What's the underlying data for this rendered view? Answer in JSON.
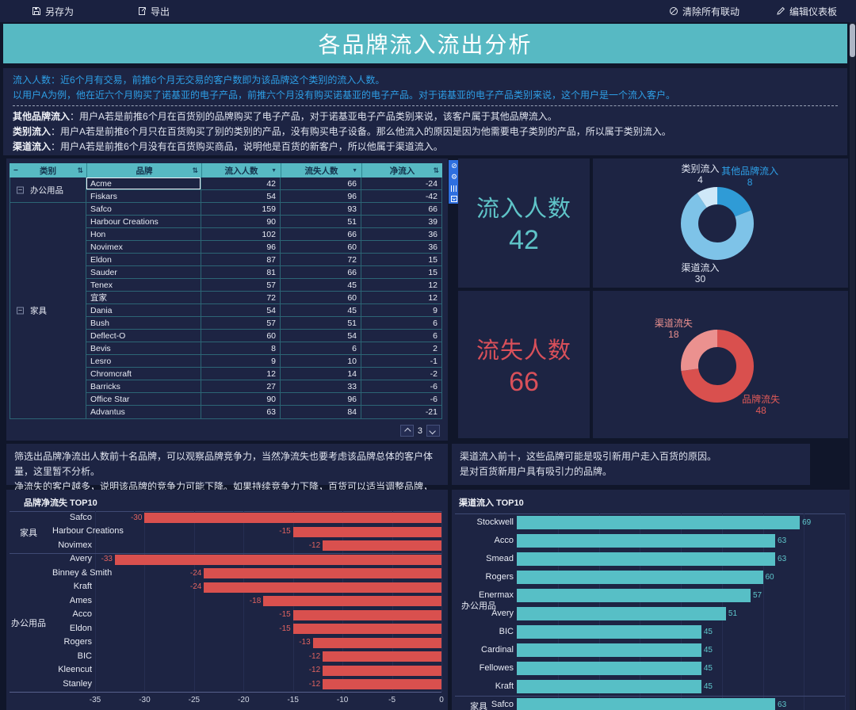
{
  "topbar": {
    "save_label": "另存为",
    "export_label": "导出",
    "clear_linkage_label": "清除所有联动",
    "edit_dashboard_label": "编辑仪表板"
  },
  "title": "各品牌流入流出分析",
  "description": {
    "blue_lines": [
      "流入人数：近6个月有交易，前推6个月无交易的客户数即为该品牌这个类别的流入人数。",
      "以用户A为例，他在近六个月购买了诺基亚的电子产品，前推六个月没有购买诺基亚的电子产品。对于诺基亚的电子产品类别来说，这个用户是一个流入客户。"
    ],
    "defs": [
      {
        "term": "其他品牌流入",
        "text": "：用户A若是前推6个月在百货别的品牌购买了电子产品，对于诺基亚电子产品类别来说，该客户属于其他品牌流入。"
      },
      {
        "term": "类别流入",
        "text": "：用户A若是前推6个月只在百货购买了别的类别的产品，没有购买电子设备。那么他流入的原因是因为他需要电子类别的产品，所以属于类别流入。"
      },
      {
        "term": "渠道流入",
        "text": "：用户A若是前推6个月没有在百货购买商品，说明他是百货的新客户，所以他属于渠道流入。"
      }
    ]
  },
  "table": {
    "headers": [
      "类别",
      "品牌",
      "流入人数",
      "流失人数",
      "净流入"
    ],
    "selected_brand": "Acme",
    "pager_page": "3",
    "groups": [
      {
        "category": "办公用品",
        "rows": [
          [
            "Acme",
            42,
            66,
            -24
          ],
          [
            "Fiskars",
            54,
            96,
            -42
          ]
        ]
      },
      {
        "category": "家具",
        "rows": [
          [
            "Safco",
            159,
            93,
            66
          ],
          [
            "Harbour Creations",
            90,
            51,
            39
          ],
          [
            "Hon",
            102,
            66,
            36
          ],
          [
            "Novimex",
            96,
            60,
            36
          ],
          [
            "Eldon",
            87,
            72,
            15
          ],
          [
            "Sauder",
            81,
            66,
            15
          ],
          [
            "Tenex",
            57,
            45,
            12
          ],
          [
            "宜家",
            72,
            60,
            12
          ],
          [
            "Dania",
            54,
            45,
            9
          ],
          [
            "Bush",
            57,
            51,
            6
          ],
          [
            "Deflect-O",
            60,
            54,
            6
          ],
          [
            "Bevis",
            8,
            6,
            2
          ],
          [
            "Lesro",
            9,
            10,
            -1
          ],
          [
            "Chromcraft",
            12,
            14,
            -2
          ],
          [
            "Barricks",
            27,
            33,
            -6
          ],
          [
            "Office Star",
            90,
            96,
            -6
          ],
          [
            "Advantus",
            63,
            84,
            -21
          ]
        ]
      }
    ]
  },
  "kpis": [
    {
      "label": "流入人数",
      "value": "42",
      "color": "#5fc4c8"
    },
    {
      "label": "流失人数",
      "value": "66",
      "color": "#d9505a"
    }
  ],
  "notes": {
    "left_lines": [
      "筛选出品牌净流出人数前十名品牌，可以观察品牌竞争力，当然净流失也要考虑该品牌总体的客户体量，这里暂不分析。",
      "净流失的客户越多，说明该品牌的竞争力可能下降。如果持续竞争力下降，百货可以适当调整品牌，更换更具竞争力的品牌。"
    ],
    "right_lines": [
      "渠道流入前十，这些品牌可能是吸引新用户走入百货的原因。",
      "是对百货新用户具有吸引力的品牌。"
    ]
  },
  "chart_data": [
    {
      "id": "inflow-donut",
      "type": "pie",
      "total": 42,
      "slices": [
        {
          "label": "其他品牌流入",
          "value": 8,
          "color": "#2f9bd6",
          "label_color": "#2e9fe6"
        },
        {
          "label": "渠道流入",
          "value": 30,
          "color": "#7ec3e8",
          "label_color": "#dfe4f0"
        },
        {
          "label": "类别流入",
          "value": 4,
          "color": "#cfe8f8",
          "label_color": "#dfe4f0"
        }
      ]
    },
    {
      "id": "outflow-donut",
      "type": "pie",
      "total": 66,
      "slices": [
        {
          "label": "品牌流失",
          "value": 48,
          "color": "#d9504e",
          "label_color": "#e05a58"
        },
        {
          "label": "渠道流失",
          "value": 18,
          "color": "#eb918f",
          "label_color": "#eb918f"
        }
      ]
    },
    {
      "id": "net-loss-top10",
      "type": "bar",
      "title": "品牌净流失 TOP10",
      "orientation": "horizontal",
      "bar_color": "#d9504e",
      "value_color": "#e06360",
      "xlim": [
        -35,
        0
      ],
      "xticks": [
        -35,
        -30,
        -25,
        -20,
        -15,
        -10,
        -5,
        0
      ],
      "groups": [
        {
          "category": "家具",
          "bars": [
            [
              "Safco",
              -30
            ],
            [
              "Harbour Creations",
              -15
            ],
            [
              "Novimex",
              -12
            ]
          ]
        },
        {
          "category": "办公用品",
          "bars": [
            [
              "Avery",
              -33
            ],
            [
              "Binney & Smith",
              -24
            ],
            [
              "Kraft",
              -24
            ],
            [
              "Ames",
              -18
            ],
            [
              "Acco",
              -15
            ],
            [
              "Eldon",
              -15
            ],
            [
              "Rogers",
              -13
            ],
            [
              "BIC",
              -12
            ],
            [
              "Kleencut",
              -12
            ],
            [
              "Stanley",
              -12
            ]
          ]
        }
      ]
    },
    {
      "id": "channel-inflow-top10",
      "type": "bar",
      "title": "渠道流入 TOP10",
      "orientation": "horizontal",
      "bar_color": "#57bfc6",
      "value_color": "#5fc8cc",
      "xlim": [
        0,
        80
      ],
      "grid_step": 10,
      "groups": [
        {
          "category": "办公用品",
          "bars": [
            [
              "Stockwell",
              69
            ],
            [
              "Acco",
              63
            ],
            [
              "Smead",
              63
            ],
            [
              "Rogers",
              60
            ],
            [
              "Enermax",
              57
            ],
            [
              "Avery",
              51
            ],
            [
              "BIC",
              45
            ],
            [
              "Cardinal",
              45
            ],
            [
              "Fellowes",
              45
            ],
            [
              "Kraft",
              45
            ]
          ]
        },
        {
          "category": "家具",
          "bars": [
            [
              "Safco",
              63
            ]
          ]
        }
      ]
    }
  ],
  "colors": {
    "accent_teal": "#57b9c3",
    "inflow_teal": "#5fc4c8",
    "outflow_red": "#d9505a",
    "blue_text": "#2e9fe6",
    "panel_bg": "#1d2443"
  }
}
